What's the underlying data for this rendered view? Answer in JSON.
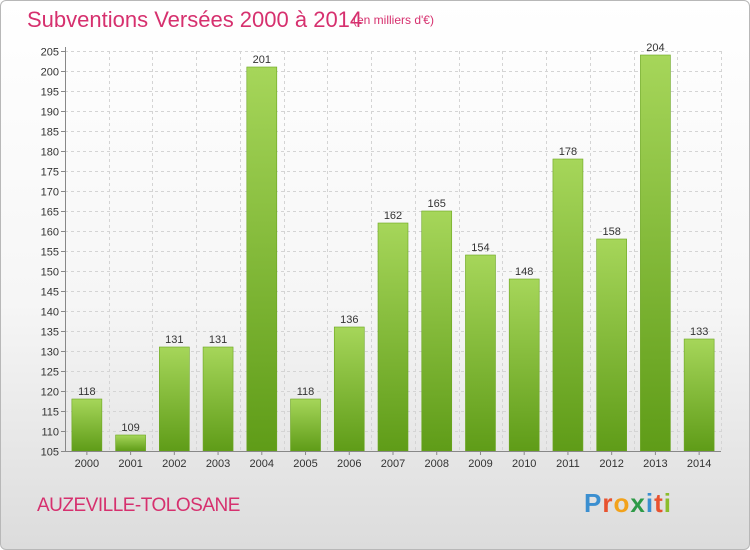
{
  "header": {
    "title": "Subventions Versées 2000 à 2014",
    "unit": "(en milliers d'€)"
  },
  "footer": {
    "commune": "AUZEVILLE-TOLOSANE",
    "logo_letters": [
      {
        "char": "P",
        "color": "#3b8fd0"
      },
      {
        "char": "r",
        "color": "#e8522f"
      },
      {
        "char": "o",
        "color": "#f2a21b"
      },
      {
        "char": "x",
        "color": "#2e9a47"
      },
      {
        "char": "i",
        "color": "#3b8fd0"
      },
      {
        "char": "t",
        "color": "#e8522f"
      },
      {
        "char": "i",
        "color": "#8bbd2c"
      }
    ]
  },
  "colors": {
    "accent": "#d6306e",
    "bar_top": "#a6d65a",
    "bar_bottom": "#5f9c18",
    "bar_edge": "#6aa51f"
  },
  "chart_data": {
    "type": "bar",
    "title": "Subventions Versées 2000 à 2014",
    "categories": [
      "2000",
      "2001",
      "2002",
      "2003",
      "2004",
      "2005",
      "2006",
      "2007",
      "2008",
      "2009",
      "2010",
      "2011",
      "2012",
      "2013",
      "2014"
    ],
    "values": [
      118,
      109,
      131,
      131,
      201,
      118,
      136,
      162,
      165,
      154,
      148,
      178,
      158,
      204,
      133
    ],
    "ylim": [
      105,
      205
    ],
    "yticks": [
      105,
      110,
      115,
      120,
      125,
      130,
      135,
      140,
      145,
      150,
      155,
      160,
      165,
      170,
      175,
      180,
      185,
      190,
      195,
      200,
      205
    ],
    "grid": true
  }
}
